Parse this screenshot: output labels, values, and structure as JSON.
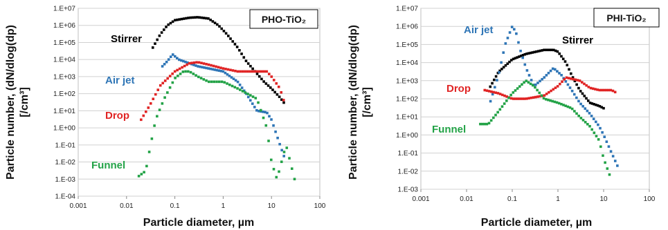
{
  "chart_data": [
    {
      "type": "scatter",
      "title": "PHO-TiO₂",
      "xlabel": "Particle diameter, µm",
      "ylabel_line1": "Particle number, (dN/dlog(dp)",
      "ylabel_line2": "[/cm³]",
      "x_scale": "log",
      "y_scale": "log",
      "xlim": [
        0.001,
        100
      ],
      "ylim": [
        0.0001,
        10000000
      ],
      "x_ticks": [
        "0.001",
        "0.01",
        "0.1",
        "1",
        "10",
        "100"
      ],
      "y_ticks": [
        "1.E-04",
        "1.E-03",
        "1.E-02",
        "1.E-01",
        "1.E+00",
        "1.E+01",
        "1.E+02",
        "1.E+03",
        "1.E+04",
        "1.E+05",
        "1.E+06",
        "1.E+07"
      ],
      "grid": "horizontal",
      "series": [
        {
          "name": "Stirrer",
          "color": "#000000",
          "points": [
            [
              0.035,
              50000.0
            ],
            [
              0.05,
              300000.0
            ],
            [
              0.07,
              1000000.0
            ],
            [
              0.1,
              2000000.0
            ],
            [
              0.2,
              2800000.0
            ],
            [
              0.3,
              3000000.0
            ],
            [
              0.5,
              2500000.0
            ],
            [
              0.8,
              1000000.0
            ],
            [
              1.2,
              300000.0
            ],
            [
              2,
              50000.0
            ],
            [
              3,
              8000.0
            ],
            [
              5,
              1500.0
            ],
            [
              7,
              500.0
            ],
            [
              10,
              200.0
            ],
            [
              15,
              60
            ],
            [
              20,
              20
            ]
          ]
        },
        {
          "name": "Air jet",
          "color": "#2e75b6",
          "points": [
            [
              0.05,
              3000.0
            ],
            [
              0.07,
              8000.0
            ],
            [
              0.09,
              20000.0
            ],
            [
              0.12,
              10000.0
            ],
            [
              0.2,
              6000.0
            ],
            [
              0.3,
              4000.0
            ],
            [
              0.5,
              3000.0
            ],
            [
              1,
              2000.0
            ],
            [
              2,
              500.0
            ],
            [
              3,
              100.0
            ],
            [
              5,
              10
            ],
            [
              8,
              8
            ],
            [
              10,
              3
            ],
            [
              15,
              0.1
            ],
            [
              20,
              0.01
            ]
          ]
        },
        {
          "name": "Drop",
          "color": "#e02424",
          "points": [
            [
              0.02,
              3
            ],
            [
              0.03,
              20
            ],
            [
              0.05,
              300.0
            ],
            [
              0.1,
              2000.0
            ],
            [
              0.2,
              6000.0
            ],
            [
              0.3,
              7000.0
            ],
            [
              0.5,
              5000.0
            ],
            [
              1,
              3000.0
            ],
            [
              2,
              2000.0
            ],
            [
              5,
              2000.0
            ],
            [
              8,
              2000.0
            ],
            [
              10,
              1000.0
            ],
            [
              15,
              200.0
            ],
            [
              20,
              15
            ]
          ]
        },
        {
          "name": "Funnel",
          "color": "#22a246",
          "points": [
            [
              0.018,
              0.0015
            ],
            [
              0.025,
              0.003
            ],
            [
              0.03,
              0.05
            ],
            [
              0.04,
              3
            ],
            [
              0.06,
              50
            ],
            [
              0.1,
              800.0
            ],
            [
              0.15,
              2000.0
            ],
            [
              0.2,
              2000.0
            ],
            [
              0.3,
              1000.0
            ],
            [
              0.5,
              500.0
            ],
            [
              1,
              500.0
            ],
            [
              2,
              200.0
            ],
            [
              5,
              50
            ],
            [
              8,
              1
            ],
            [
              10,
              0.01
            ],
            [
              13,
              0.001
            ],
            [
              20,
              0.1
            ],
            [
              30,
              0.001
            ]
          ]
        }
      ],
      "annotations": [
        "Stirrer",
        "Air jet",
        "Drop",
        "Funnel"
      ]
    },
    {
      "type": "scatter",
      "title": "PHI-TiO₂",
      "xlabel": "Particle diameter, µm",
      "ylabel_line1": "Particle number, (dN/dlog(dp)",
      "ylabel_line2": "[/cm³]",
      "x_scale": "log",
      "y_scale": "log",
      "xlim": [
        0.001,
        100
      ],
      "ylim": [
        0.001,
        10000000
      ],
      "x_ticks": [
        "0.001",
        "0.01",
        "0.1",
        "1",
        "10",
        "100"
      ],
      "y_ticks": [
        "1.E-03",
        "1.E-02",
        "1.E-01",
        "1.E+00",
        "1.E+01",
        "1.E+02",
        "1.E+03",
        "1.E+04",
        "1.E+05",
        "1.E+06",
        "1.E+07"
      ],
      "grid": "horizontal",
      "series": [
        {
          "name": "Stirrer",
          "color": "#000000",
          "points": [
            [
              0.03,
              300.0
            ],
            [
              0.05,
              3000.0
            ],
            [
              0.1,
              15000.0
            ],
            [
              0.2,
              30000.0
            ],
            [
              0.5,
              50000.0
            ],
            [
              0.8,
              50000.0
            ],
            [
              1,
              40000.0
            ],
            [
              1.5,
              10000.0
            ],
            [
              2,
              2000.0
            ],
            [
              3,
              300.0
            ],
            [
              5,
              60
            ],
            [
              8,
              40
            ],
            [
              10,
              30
            ]
          ]
        },
        {
          "name": "Air jet",
          "color": "#2e75b6",
          "points": [
            [
              0.03,
              30
            ],
            [
              0.05,
              2000.0
            ],
            [
              0.07,
              100000.0
            ],
            [
              0.1,
              1000000.0
            ],
            [
              0.12,
              500000.0
            ],
            [
              0.15,
              50000.0
            ],
            [
              0.2,
              5000.0
            ],
            [
              0.3,
              500.0
            ],
            [
              0.5,
              1500.0
            ],
            [
              0.8,
              5000.0
            ],
            [
              1.2,
              2000.0
            ],
            [
              2,
              300.0
            ],
            [
              3,
              60
            ],
            [
              5,
              15
            ],
            [
              8,
              3
            ],
            [
              10,
              1
            ],
            [
              15,
              0.1
            ],
            [
              20,
              0.02
            ]
          ]
        },
        {
          "name": "Drop",
          "color": "#e02424",
          "points": [
            [
              0.025,
              300.0
            ],
            [
              0.05,
              200.0
            ],
            [
              0.1,
              100.0
            ],
            [
              0.2,
              100.0
            ],
            [
              0.5,
              150.0
            ],
            [
              1,
              500.0
            ],
            [
              1.5,
              1500.0
            ],
            [
              3,
              1000.0
            ],
            [
              5,
              400.0
            ],
            [
              8,
              300.0
            ],
            [
              10,
              300.0
            ],
            [
              15,
              300.0
            ],
            [
              20,
              200.0
            ]
          ]
        },
        {
          "name": "Funnel",
          "color": "#22a246",
          "points": [
            [
              0.02,
              4
            ],
            [
              0.03,
              4
            ],
            [
              0.05,
              20
            ],
            [
              0.1,
              200.0
            ],
            [
              0.2,
              1000.0
            ],
            [
              0.3,
              500.0
            ],
            [
              0.5,
              100.0
            ],
            [
              1,
              60
            ],
            [
              2,
              30
            ],
            [
              3,
              10
            ],
            [
              5,
              3
            ],
            [
              8,
              0.5
            ],
            [
              10,
              0.05
            ],
            [
              15,
              0.003
            ]
          ]
        }
      ],
      "annotations": [
        "Air jet",
        "Stirrer",
        "Drop",
        "Funnel"
      ]
    }
  ]
}
